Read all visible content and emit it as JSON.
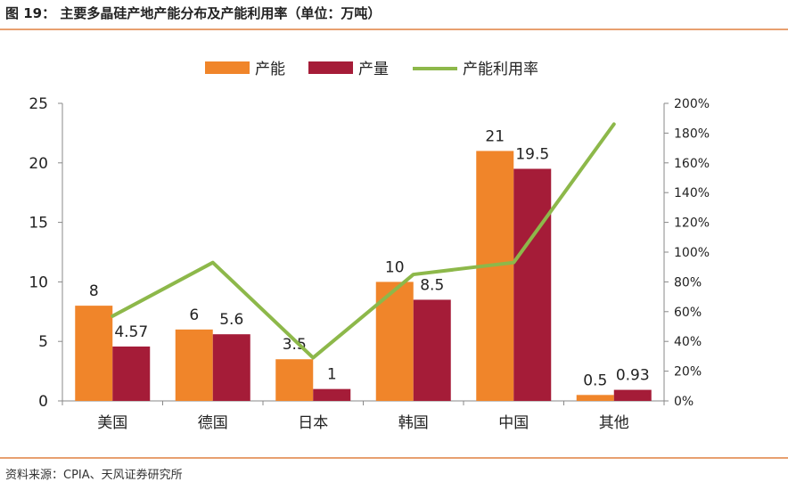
{
  "header": {
    "title": "图 19：  主要多晶硅产地产能分布及产能利用率（单位：万吨）"
  },
  "footer": {
    "source": "资料来源：CPIA、天风证券研究所"
  },
  "colors": {
    "capacity": "#F0852A",
    "output": "#A51C38",
    "utilization": "#8DB84A",
    "rule": "#E8A070"
  },
  "chart_data": {
    "type": "bar",
    "categories": [
      "美国",
      "德国",
      "日本",
      "韩国",
      "中国",
      "其他"
    ],
    "series": [
      {
        "name": "产能",
        "kind": "bar",
        "axis": "left",
        "values": [
          8,
          6,
          3.5,
          10,
          21,
          0.5
        ],
        "labels": [
          "8",
          "6",
          "3.5",
          "10",
          "21",
          "0.5"
        ]
      },
      {
        "name": "产量",
        "kind": "bar",
        "axis": "left",
        "values": [
          4.57,
          5.6,
          1,
          8.5,
          19.5,
          0.93
        ],
        "labels": [
          "4.57",
          "5.6",
          "1",
          "8.5",
          "19.5",
          "0.93"
        ]
      },
      {
        "name": "产能利用率",
        "kind": "line",
        "axis": "right",
        "values": [
          57,
          93,
          29,
          85,
          93,
          186
        ]
      }
    ],
    "left_axis": {
      "min": 0,
      "max": 25,
      "ticks": [
        0,
        5,
        10,
        15,
        20,
        25
      ]
    },
    "right_axis": {
      "min": 0,
      "max": 200,
      "ticks": [
        "0%",
        "20%",
        "40%",
        "60%",
        "80%",
        "100%",
        "120%",
        "140%",
        "160%",
        "180%",
        "200%"
      ]
    },
    "legend": [
      "产能",
      "产量",
      "产能利用率"
    ],
    "legend_position": "top-center"
  }
}
